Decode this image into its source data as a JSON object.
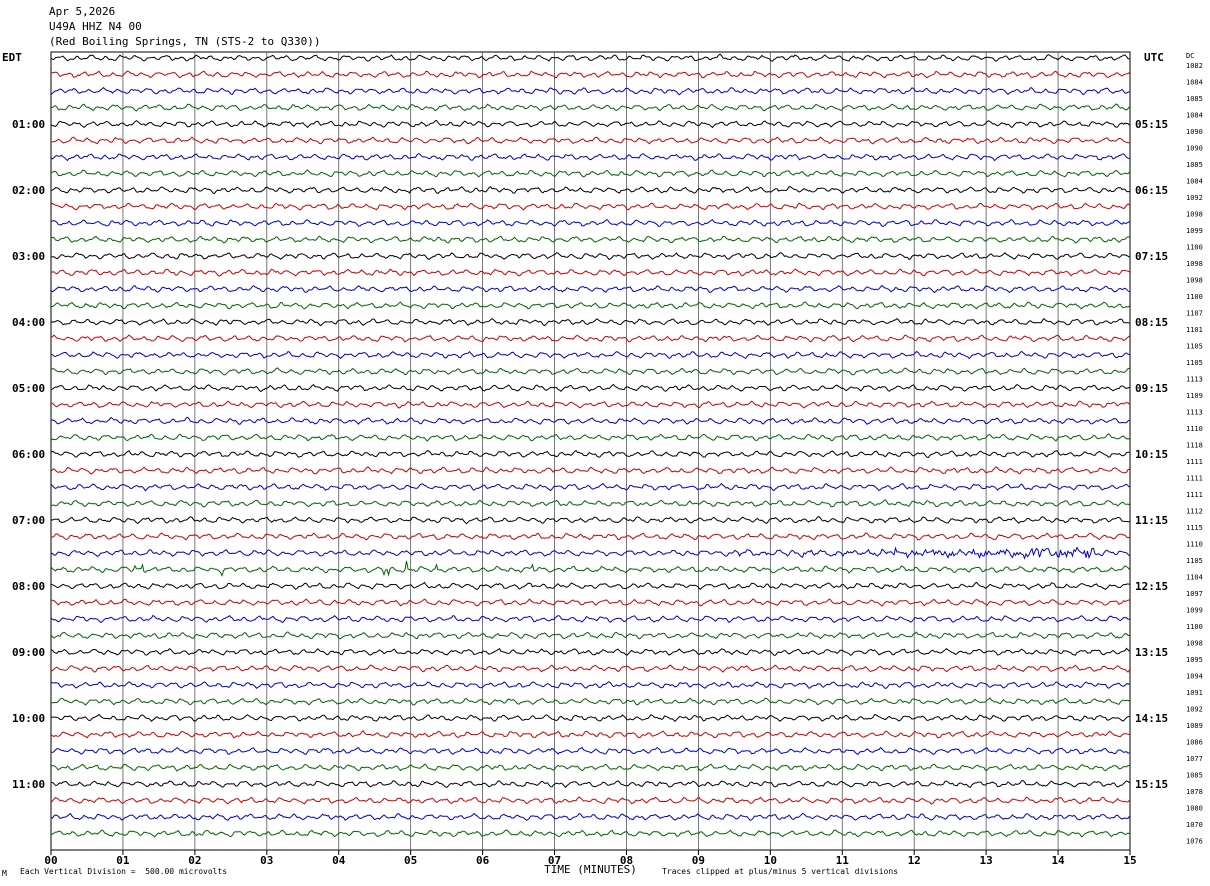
{
  "header": {
    "date": "Apr 5,2026",
    "station": "U49A HHZ N4 00",
    "location": "(Red Boiling Springs, TN (STS-2 to Q330))"
  },
  "left_tz": "EDT",
  "right_tz": "UTC",
  "dc_label": "DC",
  "footer": {
    "scale_note": "Each Vertical Division =  500.00 microvolts",
    "clip_note": "Traces clipped at plus/minus 5 vertical divisions",
    "corner_mark": "M"
  },
  "colors": {
    "trace_cycle": [
      "#000000",
      "#cc0000",
      "#0000cc",
      "#006600"
    ],
    "grid": "#000000"
  },
  "chart_data": {
    "type": "line",
    "title": "",
    "xlabel": "TIME (MINUTES)",
    "ylabel": "",
    "xlim": [
      0,
      15
    ],
    "x_ticks": [
      "00",
      "01",
      "02",
      "03",
      "04",
      "05",
      "06",
      "07",
      "08",
      "09",
      "10",
      "11",
      "12",
      "13",
      "14",
      "15"
    ],
    "left_hour_labels": [
      "01:00",
      "02:00",
      "03:00",
      "04:00",
      "05:00",
      "06:00",
      "07:00",
      "08:00",
      "09:00",
      "10:00",
      "11:00"
    ],
    "right_hour_labels": [
      "05:15",
      "06:15",
      "07:15",
      "08:15",
      "09:15",
      "10:15",
      "11:15",
      "12:15",
      "13:15",
      "14:15",
      "15:15"
    ],
    "traces_per_hour": 4,
    "trace_minutes": 15,
    "dc_offsets": [
      1082,
      1084,
      1085,
      1084,
      1090,
      1090,
      1085,
      1084,
      1092,
      1098,
      1099,
      1100,
      1098,
      1098,
      1100,
      1107,
      1101,
      1105,
      1105,
      1113,
      1109,
      1113,
      1110,
      1118,
      1111,
      1111,
      1111,
      1112,
      1115,
      1110,
      1105,
      1104,
      1097,
      1099,
      1100,
      1098,
      1095,
      1094,
      1091,
      1092,
      1089,
      1086,
      1077,
      1085,
      1078,
      1080,
      1070,
      1076
    ],
    "events": [
      {
        "trace_index": 30,
        "description_minutes": [
          9.5,
          14.5
        ],
        "kind": "elevated noise burst"
      },
      {
        "trace_index": 31,
        "description_minutes": [
          0.5,
          7.0
        ],
        "kind": "spikes"
      }
    ],
    "grid": true
  }
}
